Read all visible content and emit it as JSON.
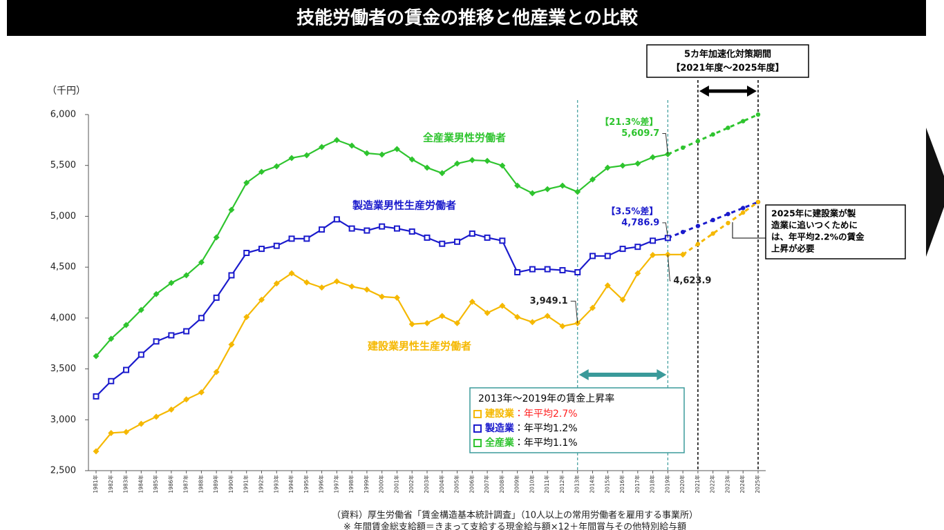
{
  "chart_data": {
    "type": "line",
    "title": "技能労働者の賃金の推移と他産業との比較",
    "y_unit": "（千円）",
    "categories": [
      "1981年",
      "1982年",
      "1983年",
      "1984年",
      "1985年",
      "1986年",
      "1987年",
      "1988年",
      "1989年",
      "1990年",
      "1991年",
      "1992年",
      "1993年",
      "1994年",
      "1995年",
      "1996年",
      "1997年",
      "1998年",
      "1999年",
      "2000年",
      "2001年",
      "2002年",
      "2003年",
      "2004年",
      "2005年",
      "2006年",
      "2007年",
      "2008年",
      "2009年",
      "2010年",
      "2011年",
      "2012年",
      "2013年",
      "2014年",
      "2015年",
      "2016年",
      "2017年",
      "2018年",
      "2019年",
      "2020年",
      "2021年",
      "2022年",
      "2023年",
      "2024年",
      "2025年"
    ],
    "ylim": [
      2500,
      6000
    ],
    "yticks": [
      {
        "value": 2500,
        "label": "2,500"
      },
      {
        "value": 3000,
        "label": "3,000"
      },
      {
        "value": 3500,
        "label": "3,500"
      },
      {
        "value": 4000,
        "label": "4,000"
      },
      {
        "value": 4500,
        "label": "4,500"
      },
      {
        "value": 5000,
        "label": "5,000"
      },
      {
        "value": 5500,
        "label": "5,500"
      },
      {
        "value": 6000,
        "label": "6,000"
      }
    ],
    "series": [
      {
        "name": "全産業男性労働者",
        "color": "#2ec42e",
        "marker": "diamond",
        "dash_from": "2019年",
        "gap_label": "【21.3%差】",
        "values": [
          3626,
          3796,
          3931,
          4080,
          4236,
          4345,
          4420,
          4548,
          4793,
          5064,
          5329,
          5437,
          5491,
          5573,
          5600,
          5681,
          5749,
          5695,
          5620,
          5607,
          5661,
          5559,
          5478,
          5424,
          5518,
          5552,
          5545,
          5498,
          5301,
          5227,
          5267,
          5301,
          5240,
          5362,
          5478,
          5498,
          5518,
          5580,
          5609.7,
          5674.8,
          5739.8,
          5804.9,
          5869.9,
          5935.0,
          6000
        ],
        "value_labels": [
          null,
          null,
          null,
          null,
          null,
          null,
          null,
          null,
          null,
          null,
          null,
          null,
          null,
          null,
          null,
          null,
          null,
          null,
          null,
          null,
          null,
          null,
          null,
          null,
          null,
          null,
          null,
          null,
          null,
          null,
          null,
          null,
          null,
          null,
          null,
          null,
          null,
          null,
          "5,609.7",
          null,
          null,
          null,
          null,
          null,
          null
        ]
      },
      {
        "name": "製造業男性生産労働者",
        "color": "#1a1acc",
        "marker": "square",
        "dash_from": "2019年",
        "gap_label": "【3.5%差】",
        "values": [
          3230,
          3380,
          3490,
          3640,
          3770,
          3830,
          3870,
          4000,
          4200,
          4420,
          4640,
          4680,
          4710,
          4780,
          4780,
          4870,
          4970,
          4880,
          4860,
          4900,
          4880,
          4850,
          4790,
          4730,
          4750,
          4830,
          4790,
          4760,
          4450,
          4480,
          4480,
          4470,
          4450,
          4610,
          4610,
          4680,
          4700,
          4760,
          4786.9,
          4845.8,
          4904.6,
          4963.5,
          5022.3,
          5081.2,
          5140
        ],
        "value_labels": [
          null,
          null,
          null,
          null,
          null,
          null,
          null,
          null,
          null,
          null,
          null,
          null,
          null,
          null,
          null,
          null,
          null,
          null,
          null,
          null,
          null,
          null,
          null,
          null,
          null,
          null,
          null,
          null,
          null,
          null,
          null,
          null,
          null,
          null,
          null,
          null,
          null,
          null,
          "4,786.9",
          null,
          null,
          null,
          null,
          null,
          null
        ]
      },
      {
        "name": "建設業男性生産労働者",
        "color": "#f5b800",
        "marker": "diamond",
        "dash_from": "2020年",
        "values": [
          2690,
          2870,
          2880,
          2960,
          3030,
          3100,
          3200,
          3270,
          3470,
          3740,
          4010,
          4180,
          4340,
          4440,
          4350,
          4300,
          4360,
          4310,
          4280,
          4210,
          4200,
          3940,
          3950,
          4020,
          3950,
          4160,
          4050,
          4120,
          4010,
          3960,
          4020,
          3920,
          3949.1,
          4100,
          4320,
          4180,
          4440,
          4620,
          4623.9,
          4623.9,
          4727.1,
          4830.3,
          4933.5,
          5036.7,
          5140
        ],
        "value_labels": [
          null,
          null,
          null,
          null,
          null,
          null,
          null,
          null,
          null,
          null,
          null,
          null,
          null,
          null,
          null,
          null,
          null,
          null,
          null,
          null,
          null,
          null,
          null,
          null,
          null,
          null,
          null,
          null,
          null,
          null,
          null,
          null,
          "3,949.1",
          null,
          null,
          null,
          null,
          null,
          "4,623.9",
          null,
          null,
          null,
          null,
          null,
          null
        ]
      }
    ],
    "periods": [
      {
        "from": "2013年",
        "to": "2019年",
        "color": "#3a9a9a"
      },
      {
        "from": "2021年",
        "to": "2025年",
        "color": "#000000",
        "label": [
          "5カ年加速化対策期間",
          "【2021年度～2025年度】"
        ]
      }
    ],
    "callout": [
      "2025年に建設業が製",
      "造業に追いつくために",
      "は、年平均2.2%の賃金",
      "上昇が必要"
    ],
    "rate_box": {
      "title": "2013年～2019年の賃金上昇率",
      "rows": [
        {
          "name": "建設業",
          "text": "：年平均2.7%",
          "color": "#f5b800",
          "text_color": "#ff2020"
        },
        {
          "name": "製造業",
          "text": "：年平均1.2%",
          "color": "#1a1acc",
          "text_color": "#000000"
        },
        {
          "name": "全産業",
          "text": "：年平均1.1%",
          "color": "#2ec42e",
          "text_color": "#000000"
        }
      ]
    },
    "notes": [
      "（資料）厚生労働省「賃金構造基本統計調査」（10人以上の常用労働者を雇用する事業所）",
      "※ 年間賃金総支給額＝きまって支給する現金給与額×12＋年間賞与その他特別給与額"
    ]
  }
}
